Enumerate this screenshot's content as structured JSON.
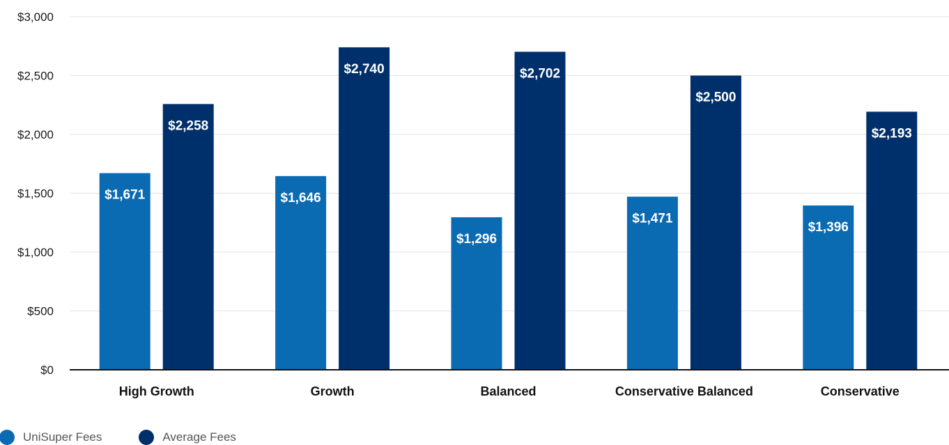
{
  "chart_data": {
    "type": "bar",
    "categories": [
      "High Growth",
      "Growth",
      "Balanced",
      "Conservative Balanced",
      "Conservative"
    ],
    "series": [
      {
        "name": "UniSuper Fees",
        "values": [
          1671,
          1646,
          1296,
          1471,
          1396
        ],
        "color": "#0a6ab2"
      },
      {
        "name": "Average Fees",
        "values": [
          2258,
          2740,
          2702,
          2500,
          2193
        ],
        "color": "#00306b"
      }
    ],
    "data_labels": {
      "UniSuper Fees": [
        "$1,671",
        "$1,646",
        "$1,296",
        "$1,471",
        "$1,396"
      ],
      "Average Fees": [
        "$2,258",
        "$2,740",
        "$2,702",
        "$2,500",
        "$2,193"
      ]
    },
    "y_ticks": [
      0,
      500,
      1000,
      1500,
      2000,
      2500,
      3000
    ],
    "y_tick_labels": [
      "$0",
      "$500",
      "$1,000",
      "$1,500",
      "$2,000",
      "$2,500",
      "$3,000"
    ],
    "ylim": [
      0,
      3000
    ],
    "grid": true,
    "legend_position": "bottom-left",
    "title": "",
    "xlabel": "",
    "ylabel": ""
  },
  "legend": {
    "items": [
      {
        "label": "UniSuper Fees",
        "color": "#0a6ab2"
      },
      {
        "label": "Average Fees",
        "color": "#00306b"
      }
    ]
  }
}
